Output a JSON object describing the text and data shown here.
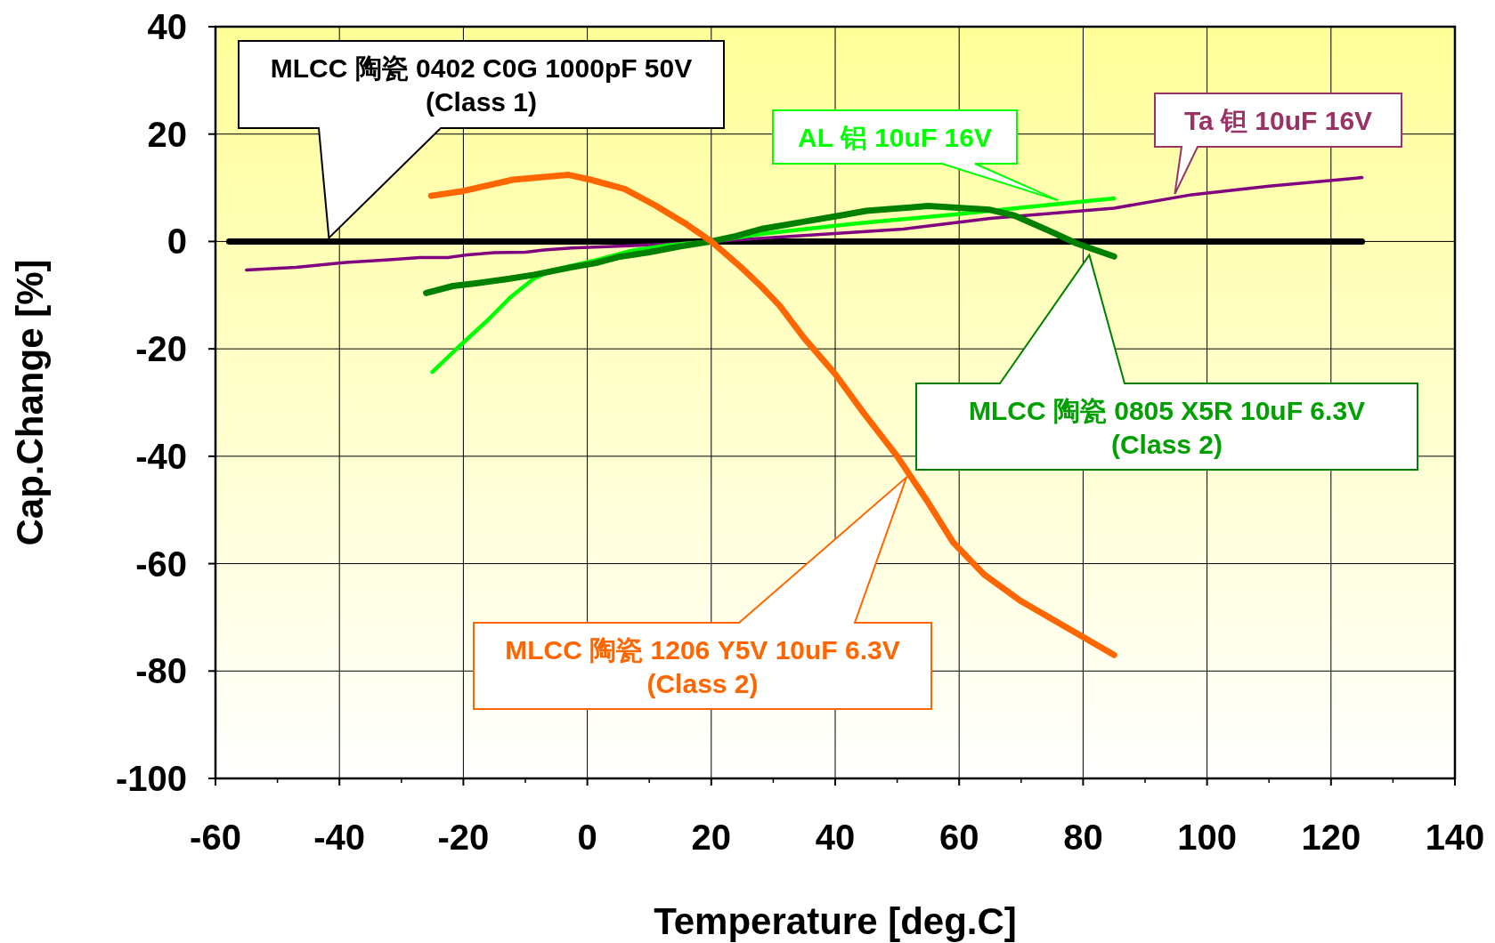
{
  "chart_data": {
    "type": "line",
    "xlabel": "Temperature [deg.C]",
    "ylabel": "Cap.Change [%]",
    "xlim": [
      -60,
      140
    ],
    "xticks": [
      -60,
      -40,
      -20,
      0,
      20,
      40,
      60,
      80,
      100,
      120,
      140
    ],
    "ylim": [
      -100,
      40
    ],
    "yticks": [
      -100,
      -80,
      -60,
      -40,
      -20,
      0,
      20,
      40
    ],
    "grid": true,
    "marker": "none",
    "line_style": "solid",
    "series": [
      {
        "name": "MLCC 陶瓷 0402 C0G 1000pF 50V\n(Class 1)",
        "color": "#000000",
        "x": [
          -57.8,
          125
        ],
        "values": [
          0,
          0
        ]
      },
      {
        "name": "Ta  钽 10uF 16V",
        "color": "#800080",
        "x": [
          -55,
          -47,
          -39,
          -32,
          -27,
          -22.5,
          -19.4,
          -15,
          -10,
          -7,
          -2.5,
          4,
          13,
          20,
          36,
          51,
          65,
          85,
          97.5,
          110,
          125
        ],
        "values": [
          -5.3,
          -4.8,
          -3.9,
          -3.4,
          -3,
          -3,
          -2.5,
          -2.1,
          -2,
          -1.6,
          -1.2,
          -0.9,
          -0.5,
          0,
          1.2,
          2.3,
          4.3,
          6.2,
          8.7,
          10.3,
          11.9
        ]
      },
      {
        "name": "AL 铝 10uF 16V",
        "color": "#00ff00",
        "x": [
          -25,
          -21,
          -16,
          -12.5,
          -8.6,
          -5.5,
          0.6,
          6.8,
          12.9,
          20,
          28,
          43.7,
          59,
          71,
          85
        ],
        "values": [
          -24.3,
          -19.9,
          -14.6,
          -10.5,
          -6.9,
          -5.3,
          -3.7,
          -1.8,
          -0.7,
          0,
          1.4,
          3.4,
          5,
          6.4,
          8
        ]
      },
      {
        "name": "MLCC 陶瓷 0805 X5R 10uF 6.3V\n(Class 2)",
        "color": "#008000",
        "x": [
          -26,
          -21.7,
          -18,
          -13,
          -8.6,
          -2.5,
          1.4,
          5,
          10,
          14.5,
          20,
          24,
          28,
          35,
          40.6,
          45,
          55,
          65,
          69,
          74.5,
          79,
          85
        ],
        "values": [
          -9.6,
          -8.3,
          -7.8,
          -7,
          -6.2,
          -4.8,
          -4,
          -2.9,
          -2,
          -1,
          0,
          1,
          2.3,
          3.7,
          4.8,
          5.7,
          6.6,
          5.9,
          4.8,
          2,
          -0.4,
          -2.8
        ]
      },
      {
        "name": "MLCC 陶瓷 1206 Y5V 10uF 6.3V\n(Class 2)",
        "color": "#ff6600",
        "x": [
          -25.2,
          -20,
          -12,
          -3,
          0.5,
          6,
          11,
          16,
          20,
          24.8,
          28,
          31,
          35,
          40,
          44.5,
          50,
          55,
          59,
          64,
          70,
          77.5,
          85
        ],
        "values": [
          8.5,
          9.4,
          11.5,
          12.4,
          11.5,
          9.8,
          6.7,
          3.2,
          0,
          -4.8,
          -8.3,
          -11.9,
          -18,
          -24.7,
          -31.8,
          -40,
          -48.6,
          -56,
          -62,
          -67,
          -72,
          -77
        ]
      }
    ]
  }
}
